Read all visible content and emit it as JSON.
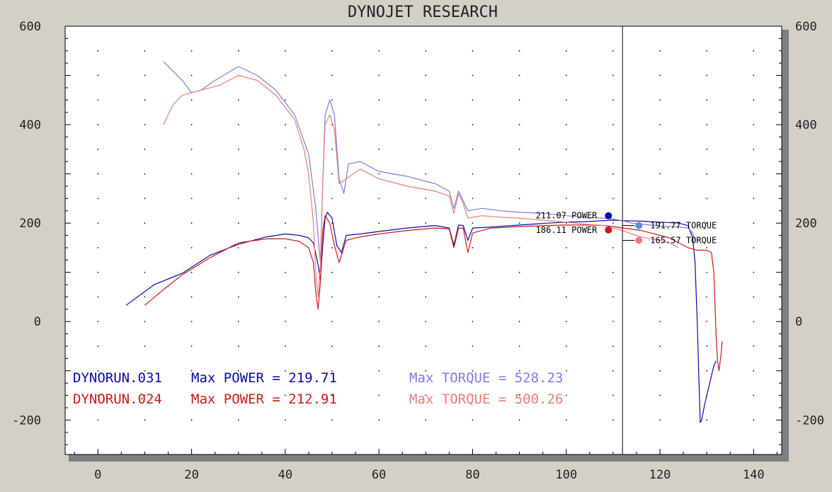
{
  "chart_data": {
    "type": "line",
    "title": "DYNOJET RESEARCH",
    "xlabel": "",
    "ylabel": "",
    "xlim": [
      -7,
      146
    ],
    "ylim": [
      -270,
      600
    ],
    "x_ticks": [
      0,
      20,
      40,
      60,
      80,
      100,
      120,
      140
    ],
    "y_ticks": [
      600,
      400,
      200,
      0,
      -200
    ],
    "grid": true,
    "legend_placement": "bottom-left",
    "cursor_x": 112,
    "series": [
      {
        "name": "DYNORUN.031 POWER",
        "color": "#0a0aa8",
        "x": [
          6,
          12,
          18,
          24,
          30,
          36,
          40,
          43,
          45,
          46,
          47,
          47.5,
          48,
          48.5,
          49,
          50,
          51,
          52,
          53,
          56,
          60,
          66,
          72,
          75,
          76,
          77,
          78,
          79,
          80,
          84,
          90,
          96,
          100,
          104,
          108,
          110,
          112,
          116,
          120,
          124,
          126,
          127,
          127.5,
          128,
          128.3,
          128.6,
          128.9,
          129.2,
          129.5,
          130,
          130.5,
          131,
          131.5,
          132
        ],
        "y": [
          33,
          75,
          98,
          135,
          157,
          172,
          178,
          175,
          170,
          160,
          115,
          85,
          155,
          210,
          222,
          210,
          155,
          140,
          175,
          178,
          183,
          190,
          195,
          190,
          155,
          196,
          195,
          165,
          190,
          192,
          196,
          200,
          202,
          203,
          205,
          206,
          205,
          204,
          202,
          200,
          195,
          170,
          120,
          -10,
          -110,
          -205,
          -200,
          -185,
          -170,
          -150,
          -130,
          -110,
          -90,
          -80
        ]
      },
      {
        "name": "DYNORUN.031 TORQUE",
        "color": "#7d7de0",
        "x": [
          14,
          18,
          20,
          22,
          25,
          30,
          34,
          38,
          42,
          45,
          46.5,
          47.5,
          48,
          48.5,
          49.5,
          50.5,
          51.5,
          52.5,
          53.5,
          56,
          60,
          66,
          72,
          75,
          76,
          77,
          78,
          79,
          82,
          86,
          90,
          95,
          100,
          104,
          108,
          110,
          112,
          114,
          116,
          118,
          120,
          124,
          126,
          127,
          127.5
        ],
        "y": [
          528,
          490,
          465,
          470,
          490,
          518,
          500,
          470,
          420,
          340,
          230,
          120,
          280,
          420,
          450,
          420,
          290,
          260,
          320,
          325,
          305,
          295,
          280,
          265,
          230,
          265,
          245,
          225,
          230,
          225,
          222,
          220,
          215,
          212,
          210,
          208,
          205,
          200,
          198,
          196,
          194,
          192,
          190,
          180,
          165
        ]
      },
      {
        "name": "DYNORUN.024 POWER",
        "color": "#cc1a1a",
        "x": [
          10,
          14,
          18,
          24,
          30,
          36,
          40,
          43,
          45,
          46,
          46.5,
          47,
          47.5,
          48,
          48.5,
          49.5,
          50.5,
          51.5,
          53,
          56,
          60,
          66,
          72,
          75,
          76,
          77,
          78,
          79,
          80,
          84,
          90,
          96,
          100,
          104,
          108,
          110,
          112,
          116,
          118,
          120,
          122,
          124,
          126,
          128,
          130,
          131,
          131.5,
          132,
          132.3,
          132.6,
          133,
          133.3
        ],
        "y": [
          33,
          65,
          95,
          130,
          160,
          168,
          168,
          163,
          150,
          120,
          60,
          25,
          80,
          185,
          215,
          200,
          155,
          120,
          165,
          172,
          178,
          185,
          190,
          188,
          150,
          190,
          190,
          140,
          180,
          190,
          193,
          195,
          196,
          196,
          195,
          193,
          190,
          185,
          180,
          175,
          170,
          160,
          150,
          145,
          145,
          140,
          100,
          -30,
          -80,
          -100,
          -70,
          -40
        ]
      },
      {
        "name": "DYNORUN.024 TORQUE",
        "color": "#ef7b7b",
        "x": [
          14,
          16,
          18,
          22,
          26,
          30,
          34,
          38,
          42,
          44,
          45,
          46,
          46.5,
          47,
          47.5,
          48,
          48.5,
          49.5,
          50.5,
          51.5,
          53,
          56,
          60,
          66,
          72,
          75,
          76,
          77,
          78,
          79,
          82,
          86,
          90,
          95,
          100,
          104,
          108,
          110,
          112,
          114,
          116,
          118,
          120,
          122,
          124
        ],
        "y": [
          400,
          440,
          460,
          470,
          480,
          500,
          490,
          460,
          410,
          350,
          300,
          200,
          100,
          50,
          120,
          280,
          400,
          420,
          390,
          280,
          290,
          310,
          290,
          275,
          265,
          255,
          220,
          260,
          240,
          210,
          215,
          212,
          210,
          206,
          202,
          198,
          195,
          190,
          185,
          178,
          172,
          168,
          165,
          160,
          150
        ]
      }
    ],
    "markers": [
      {
        "label": "211.07 POWER",
        "color": "#0a0aa8",
        "side": "left",
        "x": 109,
        "y": 215
      },
      {
        "label": "191.77 TORQUE",
        "color": "#7d7de0",
        "side": "right",
        "x": 115.5,
        "y": 195
      },
      {
        "label": "186.11 POWER",
        "color": "#cc1a1a",
        "side": "left",
        "x": 109,
        "y": 186
      },
      {
        "label": "165.57 TORQUE",
        "color": "#ef7b7b",
        "side": "right",
        "x": 115.5,
        "y": 165
      }
    ],
    "legend": [
      {
        "run": "DYNORUN.031",
        "power_text": "Max POWER = 219.71",
        "torque_text": "Max TORQUE = 528.23",
        "power_color": "#0a0aa8",
        "torque_color": "#7d7de0"
      },
      {
        "run": "DYNORUN.024",
        "power_text": "Max POWER = 212.91",
        "torque_text": "Max TORQUE = 500.26",
        "power_color": "#cc1a1a",
        "torque_color": "#ef7b7b"
      }
    ]
  }
}
